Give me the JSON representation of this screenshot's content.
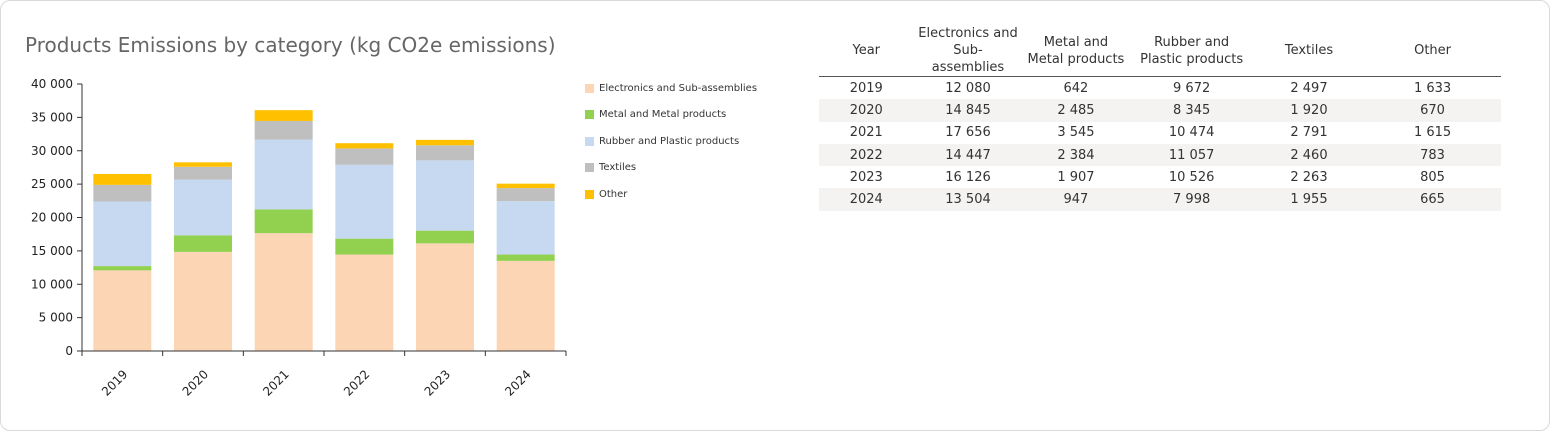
{
  "chart_data": {
    "type": "bar",
    "stacked": true,
    "title": "Products Emissions by category (kg CO2e emissions)",
    "xlabel": "",
    "ylabel": "",
    "ylim": [
      0,
      40000
    ],
    "yticks": [
      0,
      5000,
      10000,
      15000,
      20000,
      25000,
      30000,
      35000,
      40000
    ],
    "ytick_labels": [
      "0",
      "5 000",
      "10 000",
      "15 000",
      "20 000",
      "25 000",
      "30 000",
      "35 000",
      "40 000"
    ],
    "categories": [
      "2019",
      "2020",
      "2021",
      "2022",
      "2023",
      "2024"
    ],
    "legend_position": "right",
    "series": [
      {
        "name": "Electronics and Sub-assemblies",
        "color": "#fcd5b5",
        "values": [
          12080,
          14845,
          17656,
          14447,
          16126,
          13504
        ]
      },
      {
        "name": "Metal and Metal products",
        "color": "#92d050",
        "values": [
          642,
          2485,
          3545,
          2384,
          1907,
          947
        ]
      },
      {
        "name": "Rubber and Plastic products",
        "color": "#c6d9f1",
        "values": [
          9672,
          8345,
          10474,
          11057,
          10526,
          7998
        ]
      },
      {
        "name": "Textiles",
        "color": "#bfbfbf",
        "values": [
          2497,
          1920,
          2791,
          2460,
          2263,
          1955
        ]
      },
      {
        "name": "Other",
        "color": "#ffc000",
        "values": [
          1633,
          670,
          1615,
          783,
          805,
          665
        ]
      }
    ]
  },
  "table": {
    "headers": [
      "Year",
      "Electronics and Sub-assemblies",
      "Metal and Metal products",
      "Rubber and Plastic products",
      "Textiles",
      "Other"
    ],
    "rows": [
      [
        "2019",
        "12 080",
        "642",
        "9 672",
        "2 497",
        "1 633"
      ],
      [
        "2020",
        "14 845",
        "2 485",
        "8 345",
        "1 920",
        "670"
      ],
      [
        "2021",
        "17 656",
        "3 545",
        "10 474",
        "2 791",
        "1 615"
      ],
      [
        "2022",
        "14 447",
        "2 384",
        "11 057",
        "2 460",
        "783"
      ],
      [
        "2023",
        "16 126",
        "1 907",
        "10 526",
        "2 263",
        "805"
      ],
      [
        "2024",
        "13 504",
        "947",
        "7 998",
        "1 955",
        "665"
      ]
    ]
  }
}
